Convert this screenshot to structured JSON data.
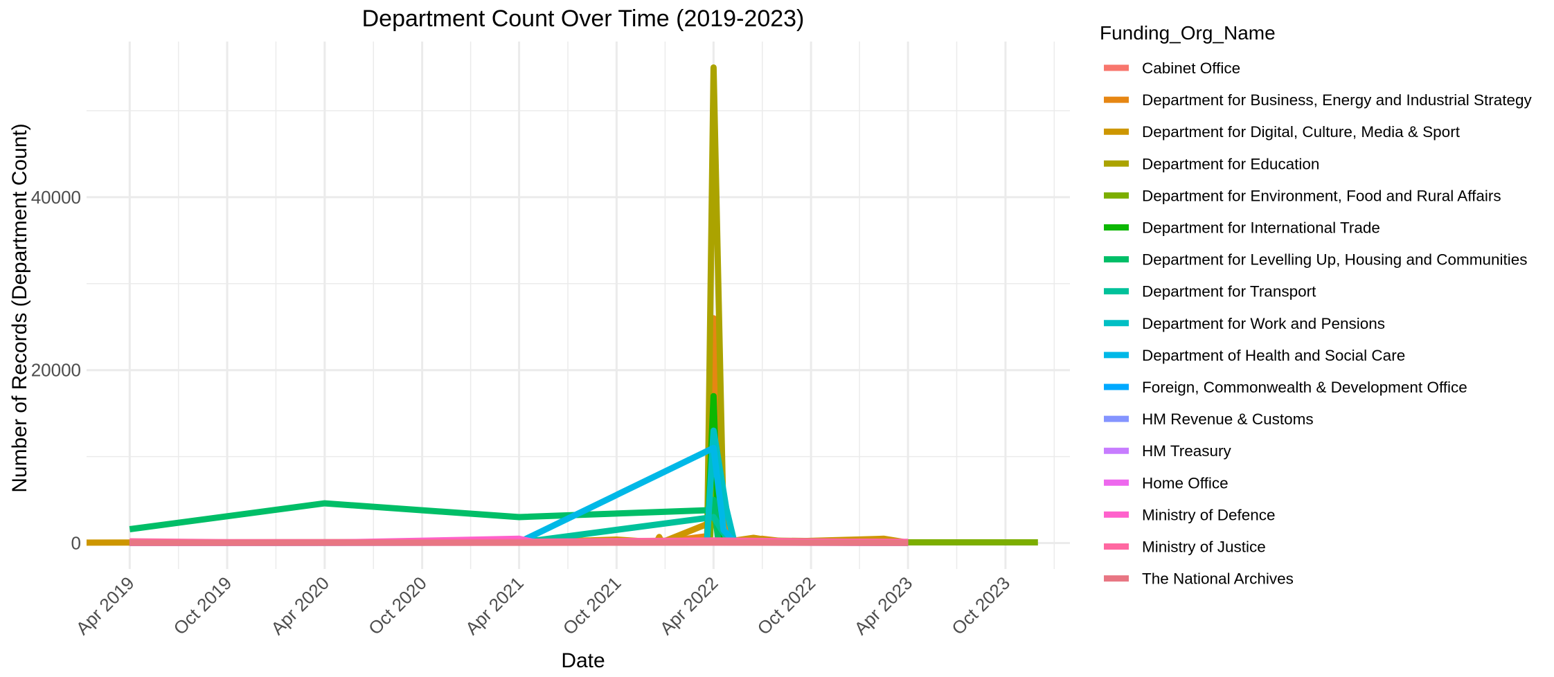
{
  "chart_data": {
    "type": "line",
    "title": "Department Count Over Time (2019-2023)",
    "xlabel": "Date",
    "ylabel": "Number of Records (Department Count)",
    "x_axis": {
      "kind": "date",
      "range": [
        "2019-01-10",
        "2024-01-30"
      ],
      "ticks": [
        {
          "date": "2019-04-01",
          "label": "Apr 2019"
        },
        {
          "date": "2019-10-01",
          "label": "Oct 2019"
        },
        {
          "date": "2020-04-01",
          "label": "Apr 2020"
        },
        {
          "date": "2020-10-01",
          "label": "Oct 2020"
        },
        {
          "date": "2021-04-01",
          "label": "Apr 2021"
        },
        {
          "date": "2021-10-01",
          "label": "Oct 2021"
        },
        {
          "date": "2022-04-01",
          "label": "Apr 2022"
        },
        {
          "date": "2022-10-01",
          "label": "Oct 2022"
        },
        {
          "date": "2023-04-01",
          "label": "Apr 2023"
        },
        {
          "date": "2023-10-01",
          "label": "Oct 2023"
        }
      ]
    },
    "y_axis": {
      "range": [
        -3000,
        58000
      ],
      "ticks": [
        0,
        20000,
        40000
      ],
      "minor_ticks": [
        10000,
        30000,
        50000
      ]
    },
    "grid": true,
    "legend": {
      "title": "Funding_Org_Name",
      "placement": "right"
    },
    "series": [
      {
        "name": "Cabinet Office",
        "color": "#F8766D",
        "points": [
          [
            "2019-04-01",
            30
          ],
          [
            "2020-04-01",
            50
          ],
          [
            "2021-04-01",
            60
          ],
          [
            "2022-04-01",
            200
          ],
          [
            "2023-04-01",
            40
          ]
        ]
      },
      {
        "name": "Department for Business, Energy and Industrial Strategy",
        "color": "#E68613",
        "points": [
          [
            "2019-04-01",
            50
          ],
          [
            "2021-04-01",
            80
          ],
          [
            "2021-10-01",
            300
          ],
          [
            "2021-12-20",
            100
          ],
          [
            "2022-03-20",
            800
          ],
          [
            "2022-04-01",
            26000
          ],
          [
            "2022-04-15",
            3000
          ],
          [
            "2022-05-05",
            200
          ],
          [
            "2022-07-01",
            500
          ],
          [
            "2022-09-01",
            50
          ],
          [
            "2023-01-01",
            80
          ],
          [
            "2023-04-01",
            30
          ]
        ]
      },
      {
        "name": "Department for Digital, Culture, Media & Sport",
        "color": "#CD9600",
        "points": [
          [
            "2019-01-10",
            50
          ],
          [
            "2019-04-01",
            60
          ],
          [
            "2020-04-01",
            40
          ],
          [
            "2021-04-01",
            50
          ],
          [
            "2021-10-01",
            400
          ],
          [
            "2021-12-15",
            100
          ],
          [
            "2021-12-20",
            700
          ],
          [
            "2021-12-25",
            100
          ],
          [
            "2022-04-01",
            2500
          ],
          [
            "2022-05-01",
            200
          ],
          [
            "2022-06-15",
            600
          ],
          [
            "2022-08-01",
            150
          ],
          [
            "2023-02-15",
            500
          ],
          [
            "2023-04-01",
            40
          ]
        ]
      },
      {
        "name": "Department for Education",
        "color": "#ABA300",
        "points": [
          [
            "2019-04-01",
            80
          ],
          [
            "2021-04-01",
            120
          ],
          [
            "2022-03-20",
            300
          ],
          [
            "2022-04-01",
            55000
          ],
          [
            "2022-04-20",
            1500
          ],
          [
            "2022-05-01",
            200
          ],
          [
            "2022-07-01",
            300
          ],
          [
            "2023-04-01",
            100
          ]
        ]
      },
      {
        "name": "Department for Environment, Food and Rural Affairs",
        "color": "#7CAE00",
        "points": [
          [
            "2022-03-25",
            200
          ],
          [
            "2022-04-01",
            9000
          ],
          [
            "2022-04-15",
            500
          ],
          [
            "2022-06-01",
            100
          ],
          [
            "2023-04-01",
            80
          ],
          [
            "2023-10-01",
            80
          ],
          [
            "2023-12-01",
            80
          ]
        ]
      },
      {
        "name": "Department for International Trade",
        "color": "#0CB702",
        "points": [
          [
            "2022-03-20",
            200
          ],
          [
            "2022-04-01",
            17000
          ],
          [
            "2022-04-10",
            1000
          ],
          [
            "2022-05-01",
            100
          ]
        ]
      },
      {
        "name": "Department for Levelling Up, Housing and Communities",
        "color": "#00BE67",
        "points": [
          [
            "2019-04-01",
            1600
          ],
          [
            "2020-04-01",
            4600
          ],
          [
            "2021-04-01",
            3000
          ],
          [
            "2022-03-20",
            3800
          ],
          [
            "2022-04-01",
            5000
          ],
          [
            "2022-04-10",
            200
          ]
        ]
      },
      {
        "name": "Department for Transport",
        "color": "#00C19A",
        "points": [
          [
            "2021-04-01",
            50
          ],
          [
            "2022-04-01",
            3000
          ],
          [
            "2022-05-01",
            100
          ]
        ]
      },
      {
        "name": "Department for Work and Pensions",
        "color": "#00BFC4",
        "points": [
          [
            "2022-03-20",
            500
          ],
          [
            "2022-04-01",
            13000
          ],
          [
            "2022-04-25",
            4000
          ],
          [
            "2022-05-10",
            100
          ]
        ]
      },
      {
        "name": "Department of Health and Social Care",
        "color": "#00B8E7",
        "points": [
          [
            "2021-04-01",
            100
          ],
          [
            "2022-04-01",
            11000
          ],
          [
            "2022-04-20",
            1500
          ],
          [
            "2022-05-10",
            100
          ]
        ]
      },
      {
        "name": "Foreign, Commonwealth & Development Office",
        "color": "#00A9FF",
        "points": [
          [
            "2019-04-01",
            20
          ],
          [
            "2021-04-01",
            40
          ],
          [
            "2022-04-01",
            200
          ],
          [
            "2023-04-01",
            30
          ]
        ]
      },
      {
        "name": "HM Revenue & Customs",
        "color": "#8494FF",
        "points": [
          [
            "2019-04-01",
            10
          ],
          [
            "2022-04-01",
            100
          ],
          [
            "2023-04-01",
            10
          ]
        ]
      },
      {
        "name": "HM Treasury",
        "color": "#C77CFF",
        "points": [
          [
            "2019-04-01",
            10
          ],
          [
            "2022-04-01",
            50
          ],
          [
            "2023-04-01",
            10
          ]
        ]
      },
      {
        "name": "Home Office",
        "color": "#ED68ED",
        "points": [
          [
            "2019-04-01",
            50
          ],
          [
            "2020-04-01",
            80
          ],
          [
            "2021-04-01",
            100
          ],
          [
            "2022-04-01",
            150
          ],
          [
            "2022-09-01",
            100
          ],
          [
            "2023-04-01",
            120
          ]
        ]
      },
      {
        "name": "Ministry of Defence",
        "color": "#FF61CC",
        "points": [
          [
            "2019-04-01",
            100
          ],
          [
            "2020-04-01",
            50
          ],
          [
            "2021-04-01",
            500
          ],
          [
            "2021-05-01",
            100
          ],
          [
            "2022-04-01",
            200
          ],
          [
            "2023-04-01",
            150
          ]
        ]
      },
      {
        "name": "Ministry of Justice",
        "color": "#FF68A1",
        "points": [
          [
            "2019-04-01",
            200
          ],
          [
            "2019-10-01",
            100
          ],
          [
            "2020-04-01",
            100
          ],
          [
            "2021-04-01",
            150
          ],
          [
            "2022-04-01",
            300
          ],
          [
            "2022-10-01",
            200
          ],
          [
            "2023-04-01",
            100
          ]
        ]
      },
      {
        "name": "The National Archives",
        "color": "#E87683",
        "points": [
          [
            "2019-04-01",
            20
          ],
          [
            "2021-04-01",
            30
          ],
          [
            "2022-04-01",
            50
          ],
          [
            "2023-04-01",
            20
          ]
        ]
      }
    ]
  }
}
